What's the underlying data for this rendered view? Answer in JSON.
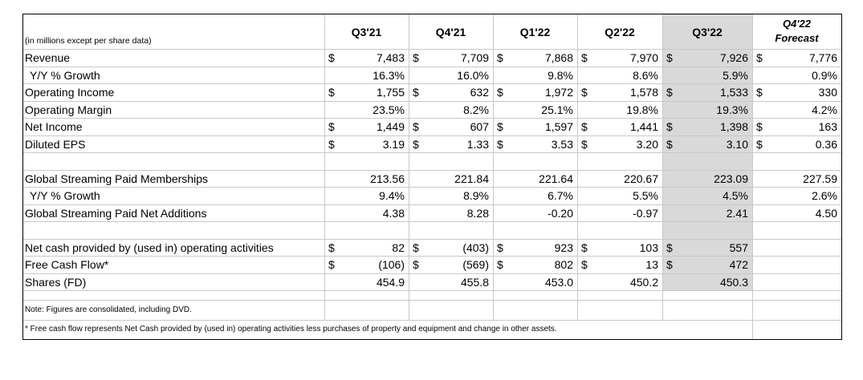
{
  "table": {
    "units_label": "(in millions except per share data)",
    "columns": [
      "Q3'21",
      "Q4'21",
      "Q1'22",
      "Q2'22",
      "Q3'22",
      "Q4'22\nForecast"
    ],
    "forecast_column": {
      "line1": "Q4'22",
      "line2": "Forecast"
    },
    "highlight_column": "Q3'22",
    "highlight_color": "#d9d9d9",
    "currency_symbol": "$",
    "rows": [
      {
        "label": "Revenue",
        "dollar": [
          true,
          true,
          true,
          true,
          true,
          true
        ],
        "values": [
          "7,483",
          "7,709",
          "7,868",
          "7,970",
          "7,926",
          "7,776"
        ]
      },
      {
        "label": "Y/Y % Growth",
        "indent": true,
        "dollar": [
          false,
          false,
          false,
          false,
          false,
          false
        ],
        "values": [
          "16.3%",
          "16.0%",
          "9.8%",
          "8.6%",
          "5.9%",
          "0.9%"
        ]
      },
      {
        "label": "Operating Income",
        "dollar": [
          true,
          true,
          true,
          true,
          true,
          true
        ],
        "values": [
          "1,755",
          "632",
          "1,972",
          "1,578",
          "1,533",
          "330"
        ]
      },
      {
        "label": "Operating Margin",
        "dollar": [
          false,
          false,
          false,
          false,
          false,
          false
        ],
        "values": [
          "23.5%",
          "8.2%",
          "25.1%",
          "19.8%",
          "19.3%",
          "4.2%"
        ]
      },
      {
        "label": "Net Income",
        "dollar": [
          true,
          true,
          true,
          true,
          true,
          true
        ],
        "values": [
          "1,449",
          "607",
          "1,597",
          "1,441",
          "1,398",
          "163"
        ]
      },
      {
        "label": "Diluted EPS",
        "dollar": [
          true,
          true,
          true,
          true,
          true,
          true
        ],
        "values": [
          "3.19",
          "1.33",
          "3.53",
          "3.20",
          "3.10",
          "0.36"
        ]
      },
      {
        "label": "",
        "blank": true,
        "dollar": [
          false,
          false,
          false,
          false,
          false,
          false
        ],
        "values": [
          "",
          "",
          "",
          "",
          "",
          ""
        ]
      },
      {
        "label": "Global Streaming Paid Memberships",
        "dollar": [
          false,
          false,
          false,
          false,
          false,
          false
        ],
        "values": [
          "213.56",
          "221.84",
          "221.64",
          "220.67",
          "223.09",
          "227.59"
        ]
      },
      {
        "label": "Y/Y % Growth",
        "indent": true,
        "dollar": [
          false,
          false,
          false,
          false,
          false,
          false
        ],
        "values": [
          "9.4%",
          "8.9%",
          "6.7%",
          "5.5%",
          "4.5%",
          "2.6%"
        ]
      },
      {
        "label": "Global Streaming Paid Net Additions",
        "dollar": [
          false,
          false,
          false,
          false,
          false,
          false
        ],
        "values": [
          "4.38",
          "8.28",
          "-0.20",
          "-0.97",
          "2.41",
          "4.50"
        ]
      },
      {
        "label": "",
        "blank": true,
        "dollar": [
          false,
          false,
          false,
          false,
          false,
          false
        ],
        "values": [
          "",
          "",
          "",
          "",
          "",
          ""
        ]
      },
      {
        "label": "Net cash provided by (used in) operating activities",
        "dollar": [
          true,
          true,
          true,
          true,
          true,
          false
        ],
        "values": [
          "82",
          "(403)",
          "923",
          "103",
          "557",
          ""
        ]
      },
      {
        "label": "Free Cash Flow*",
        "dollar": [
          true,
          true,
          true,
          true,
          true,
          false
        ],
        "values": [
          "(106)",
          "(569)",
          "802",
          "13",
          "472",
          ""
        ]
      },
      {
        "label": "Shares (FD)",
        "dollar": [
          false,
          false,
          false,
          false,
          false,
          false
        ],
        "values": [
          "454.9",
          "455.8",
          "453.0",
          "450.2",
          "450.3",
          ""
        ]
      }
    ],
    "notes": [
      "Note: Figures are consolidated, including DVD.",
      "* Free cash flow represents Net Cash provided by (used in) operating activities less purchases of property and equipment and change in other assets."
    ]
  }
}
